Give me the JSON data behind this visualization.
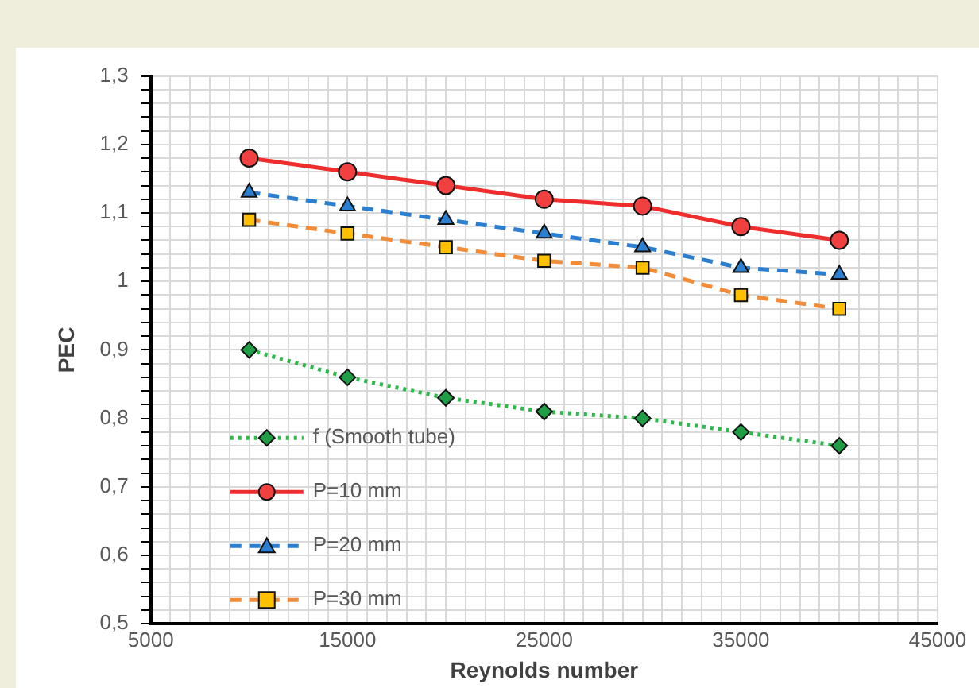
{
  "chart_data": {
    "type": "line",
    "xlabel": "Reynolds number",
    "ylabel": "PEC",
    "x": [
      10000,
      15000,
      20000,
      25000,
      30000,
      35000,
      40000
    ],
    "series": [
      {
        "name": "f (Smooth tube)",
        "color": "#2eb84b",
        "marker": "diamond",
        "line_style": "dotted",
        "values": [
          0.9,
          0.86,
          0.83,
          0.81,
          0.8,
          0.78,
          0.76
        ]
      },
      {
        "name": "P=10 mm",
        "color": "#ee2d2d",
        "marker": "circle",
        "line_style": "solid",
        "values": [
          1.18,
          1.16,
          1.14,
          1.12,
          1.11,
          1.08,
          1.06
        ]
      },
      {
        "name": "P=20 mm",
        "color": "#2a7fd0",
        "marker": "triangle",
        "line_style": "dashed",
        "values": [
          1.13,
          1.11,
          1.09,
          1.07,
          1.05,
          1.02,
          1.01
        ]
      },
      {
        "name": "P=30 mm",
        "color": "#f28c38",
        "marker": "square",
        "line_style": "dashed",
        "values": [
          1.09,
          1.07,
          1.05,
          1.03,
          1.02,
          0.98,
          0.96
        ]
      }
    ],
    "xlim": [
      5000,
      45000
    ],
    "xticks": [
      5000,
      {
        "value": 6000,
        "label": null
      },
      {
        "value": 7000,
        "label": null
      },
      {
        "value": 8000,
        "label": null
      },
      {
        "value": 9000,
        "label": null
      },
      {
        "value": 10000,
        "label": null
      },
      {
        "value": 11000,
        "label": null
      },
      {
        "value": 12000,
        "label": null
      },
      {
        "value": 13000,
        "label": null
      },
      {
        "value": 14000,
        "label": null
      },
      15000,
      {
        "value": 16000,
        "label": null
      },
      {
        "value": 17000,
        "label": null
      },
      {
        "value": 18000,
        "label": null
      },
      {
        "value": 19000,
        "label": null
      },
      {
        "value": 20000,
        "label": null
      },
      {
        "value": 21000,
        "label": null
      },
      {
        "value": 22000,
        "label": null
      },
      {
        "value": 23000,
        "label": null
      },
      {
        "value": 24000,
        "label": null
      },
      25000,
      {
        "value": 26000,
        "label": null
      },
      {
        "value": 27000,
        "label": null
      },
      {
        "value": 28000,
        "label": null
      },
      {
        "value": 29000,
        "label": null
      },
      {
        "value": 30000,
        "label": null
      },
      {
        "value": 31000,
        "label": null
      },
      {
        "value": 32000,
        "label": null
      },
      {
        "value": 33000,
        "label": null
      },
      {
        "value": 34000,
        "label": null
      },
      35000,
      {
        "value": 36000,
        "label": null
      },
      {
        "value": 37000,
        "label": null
      },
      {
        "value": 38000,
        "label": null
      },
      {
        "value": 39000,
        "label": null
      },
      {
        "value": 40000,
        "label": null
      },
      {
        "value": 41000,
        "label": null
      },
      {
        "value": 42000,
        "label": null
      },
      {
        "value": 43000,
        "label": null
      },
      {
        "value": 44000,
        "label": null
      },
      45000
    ],
    "ylim": [
      0.5,
      1.3
    ],
    "yticks": [
      {
        "value": 0.5,
        "label": "0,5"
      },
      {
        "value": 0.52,
        "label": null
      },
      {
        "value": 0.54,
        "label": null
      },
      {
        "value": 0.56,
        "label": null
      },
      {
        "value": 0.58,
        "label": null
      },
      {
        "value": 0.6,
        "label": "0,6"
      },
      {
        "value": 0.62,
        "label": null
      },
      {
        "value": 0.64,
        "label": null
      },
      {
        "value": 0.66,
        "label": null
      },
      {
        "value": 0.68,
        "label": null
      },
      {
        "value": 0.7,
        "label": "0,7"
      },
      {
        "value": 0.72,
        "label": null
      },
      {
        "value": 0.74,
        "label": null
      },
      {
        "value": 0.76,
        "label": null
      },
      {
        "value": 0.78,
        "label": null
      },
      {
        "value": 0.8,
        "label": "0,8"
      },
      {
        "value": 0.82,
        "label": null
      },
      {
        "value": 0.84,
        "label": null
      },
      {
        "value": 0.86,
        "label": null
      },
      {
        "value": 0.88,
        "label": null
      },
      {
        "value": 0.9,
        "label": "0,9"
      },
      {
        "value": 0.92,
        "label": null
      },
      {
        "value": 0.94,
        "label": null
      },
      {
        "value": 0.96,
        "label": null
      },
      {
        "value": 0.98,
        "label": null
      },
      1,
      {
        "value": 1.02,
        "label": null
      },
      {
        "value": 1.04,
        "label": null
      },
      {
        "value": 1.06,
        "label": null
      },
      {
        "value": 1.08,
        "label": null
      },
      {
        "value": 1.1,
        "label": "1,1"
      },
      {
        "value": 1.12,
        "label": null
      },
      {
        "value": 1.14,
        "label": null
      },
      {
        "value": 1.16,
        "label": null
      },
      {
        "value": 1.18,
        "label": null
      },
      {
        "value": 1.2,
        "label": "1,2"
      },
      {
        "value": 1.22,
        "label": null
      },
      {
        "value": 1.24,
        "label": null
      },
      {
        "value": 1.26,
        "label": null
      },
      {
        "value": 1.28,
        "label": null
      },
      {
        "value": 1.3,
        "label": "1,3"
      }
    ],
    "grid": true,
    "legend": "bottom left"
  }
}
